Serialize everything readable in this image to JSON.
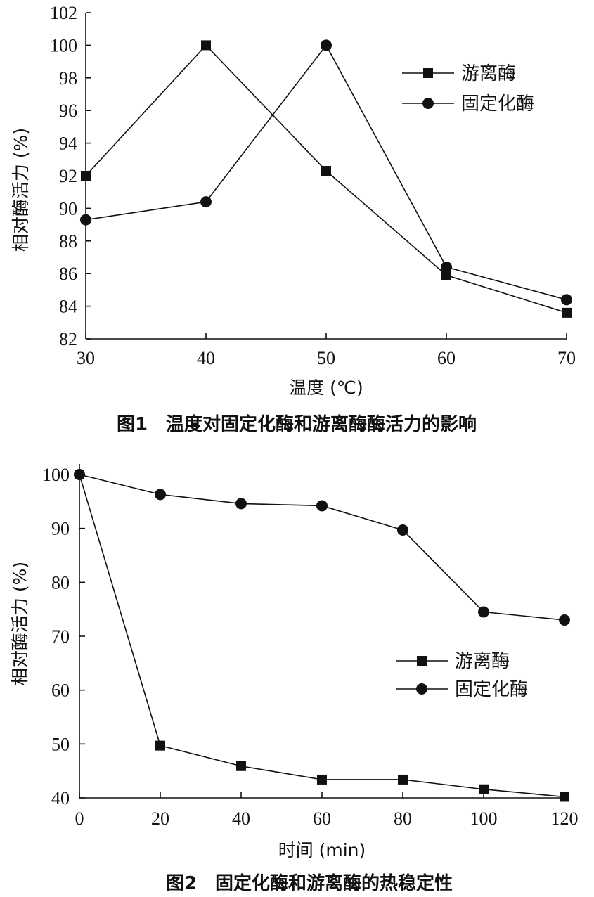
{
  "chart_data": [
    {
      "type": "line",
      "caption": "图1　温度对固定化酶和游离酶酶活力的影响",
      "xlabel": "温度 (℃)",
      "ylabel": "相对酶活力 (%)",
      "x": [
        30,
        40,
        50,
        60,
        70
      ],
      "xlim": [
        30,
        70
      ],
      "ylim": [
        82,
        102
      ],
      "xticks": [
        "30",
        "40",
        "50",
        "60",
        "70"
      ],
      "yticks": [
        "82",
        "84",
        "86",
        "88",
        "90",
        "92",
        "94",
        "96",
        "98",
        "100",
        "102"
      ],
      "legend_position": "top-right",
      "grid": false,
      "series": [
        {
          "name": "游离酶",
          "marker": "square",
          "values": [
            92.0,
            100.0,
            92.3,
            85.9,
            83.6
          ]
        },
        {
          "name": "固定化酶",
          "marker": "circle",
          "values": [
            89.3,
            90.4,
            100.0,
            86.4,
            84.4
          ]
        }
      ]
    },
    {
      "type": "line",
      "caption": "图2　固定化酶和游离酶的热稳定性",
      "xlabel": "时间 (min)",
      "ylabel": "相对酶活力 (%)",
      "x": [
        0,
        20,
        40,
        60,
        80,
        100,
        120
      ],
      "xlim": [
        0,
        120
      ],
      "ylim": [
        40,
        100
      ],
      "xticks": [
        "0",
        "20",
        "40",
        "60",
        "80",
        "100",
        "120"
      ],
      "yticks": [
        "40",
        "50",
        "60",
        "70",
        "80",
        "90",
        "100"
      ],
      "legend_position": "center-right",
      "grid": false,
      "series": [
        {
          "name": "游离酶",
          "marker": "square",
          "values": [
            100.0,
            49.7,
            45.9,
            43.4,
            43.4,
            41.6,
            40.2
          ]
        },
        {
          "name": "固定化酶",
          "marker": "circle",
          "values": [
            100.0,
            96.3,
            94.6,
            94.2,
            89.7,
            74.5,
            73.0
          ]
        }
      ]
    }
  ]
}
